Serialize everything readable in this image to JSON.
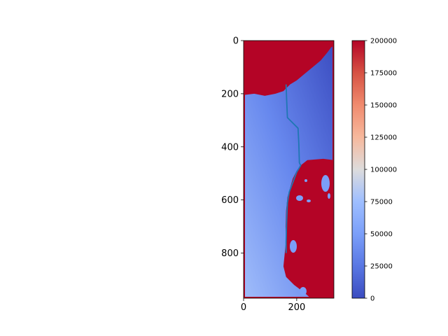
{
  "chart_data": {
    "type": "heatmap",
    "title": "",
    "xlabel": "",
    "ylabel": "",
    "image_extent": {
      "x": [
        0,
        340
      ],
      "y": [
        0,
        970
      ]
    },
    "y_inverted": true,
    "x_ticks": [
      0,
      200
    ],
    "y_ticks": [
      0,
      200,
      400,
      600,
      800
    ],
    "colormap": "coolwarm",
    "colorbar": {
      "range": [
        0,
        200000
      ],
      "ticks": [
        0,
        25000,
        50000,
        75000,
        100000,
        125000,
        150000,
        175000,
        200000
      ],
      "tick_labels": [
        "0",
        "25000",
        "50000",
        "75000",
        "100000",
        "125000",
        "150000",
        "175000",
        "200000"
      ]
    },
    "regions": {
      "saturated_value": 200000,
      "top_block_boundary": [
        [
          0,
          205
        ],
        [
          40,
          200
        ],
        [
          80,
          208
        ],
        [
          120,
          200
        ],
        [
          150,
          190
        ],
        [
          175,
          165
        ],
        [
          200,
          150
        ],
        [
          230,
          125
        ],
        [
          260,
          100
        ],
        [
          290,
          75
        ],
        [
          315,
          45
        ],
        [
          330,
          25
        ],
        [
          340,
          20
        ]
      ],
      "right_block_boundary": [
        [
          340,
          450
        ],
        [
          300,
          445
        ],
        [
          240,
          450
        ],
        [
          215,
          470
        ],
        [
          200,
          490
        ],
        [
          185,
          520
        ],
        [
          175,
          555
        ],
        [
          165,
          590
        ],
        [
          160,
          640
        ],
        [
          158,
          700
        ],
        [
          160,
          750
        ],
        [
          155,
          800
        ],
        [
          150,
          850
        ],
        [
          160,
          890
        ],
        [
          190,
          920
        ],
        [
          230,
          950
        ],
        [
          250,
          968
        ]
      ],
      "field_low_corner_value": 10000,
      "field_high_corner_value": 70000
    },
    "path": {
      "x": [
        160,
        162,
        165,
        205,
        208,
        210,
        215,
        200,
        185,
        172,
        165,
        162,
        160,
        160
      ],
      "y": [
        165,
        220,
        290,
        330,
        390,
        460,
        470,
        495,
        535,
        570,
        610,
        680,
        760,
        800
      ]
    },
    "path_color": "#1f77b4"
  }
}
